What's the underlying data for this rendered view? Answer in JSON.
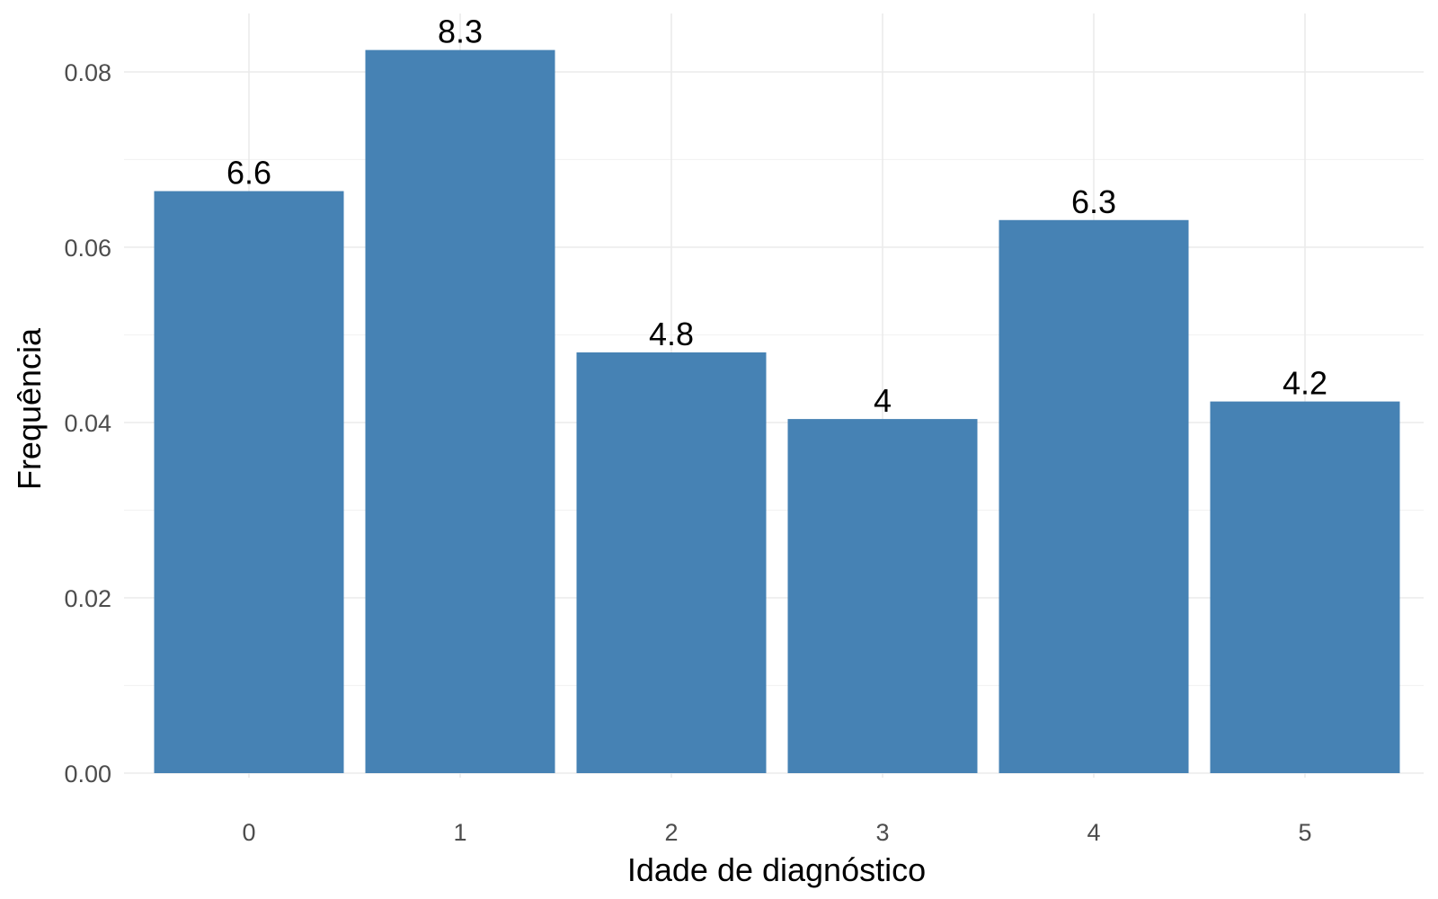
{
  "chart_data": {
    "type": "bar",
    "categories": [
      "0",
      "1",
      "2",
      "3",
      "4",
      "5"
    ],
    "values": [
      0.0664,
      0.0825,
      0.048,
      0.0404,
      0.0631,
      0.0424
    ],
    "data_labels": [
      "6.6",
      "8.3",
      "4.8",
      "4",
      "6.3",
      "4.2"
    ],
    "xlabel": "Idade de diagnóstico",
    "ylabel": "Frequência",
    "yticks": [
      "0.00",
      "0.02",
      "0.04",
      "0.06",
      "0.08"
    ],
    "ylim": [
      0,
      0.086
    ],
    "grid": true,
    "bar_color": "#4682B4"
  }
}
